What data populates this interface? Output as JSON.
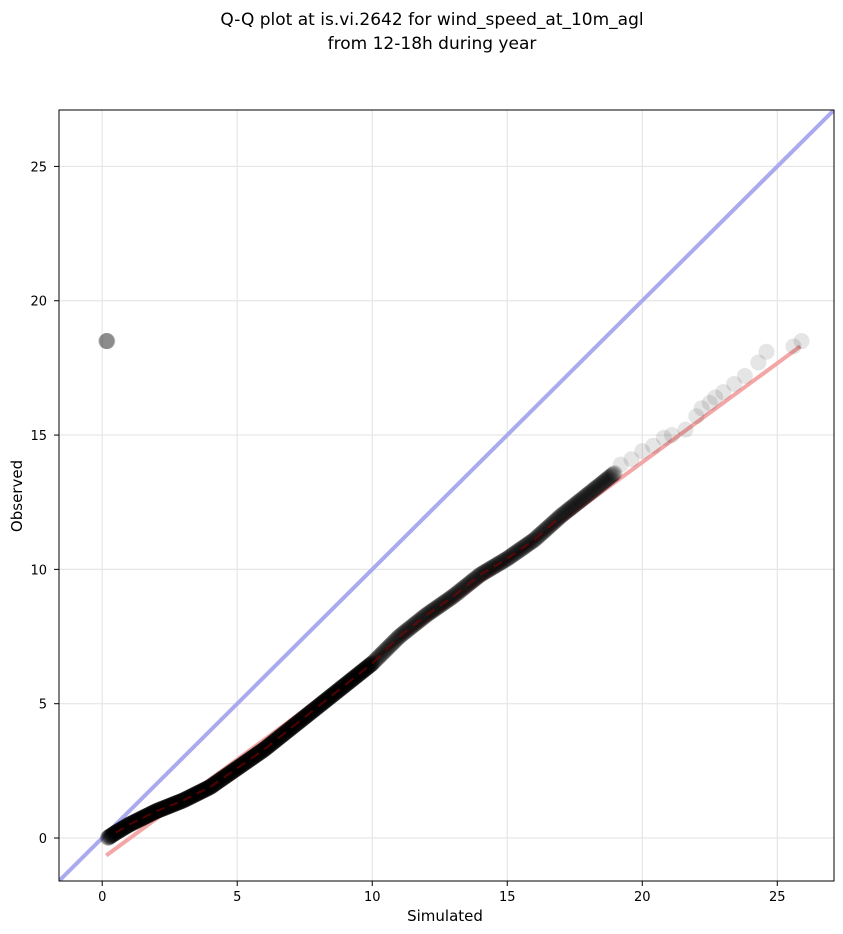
{
  "chart_data": {
    "type": "scatter",
    "title_line1": "Q-Q plot at is.vi.2642 for wind_speed_at_10m_agl",
    "title_line2": "from 12-18h during year",
    "xlabel": "Simulated",
    "ylabel": "Observed",
    "xlim": [
      -1.6,
      27.1
    ],
    "ylim": [
      -1.6,
      27.1
    ],
    "xticks": [
      0,
      5,
      10,
      15,
      20,
      25
    ],
    "yticks": [
      0,
      5,
      10,
      15,
      20,
      25
    ],
    "grid": true,
    "identity_line": {
      "from": [
        -1.6,
        -1.6
      ],
      "to": [
        27.1,
        27.1
      ],
      "color": "#aaaaee"
    },
    "fit_line": {
      "from": [
        0.15,
        -0.65
      ],
      "to": [
        25.85,
        18.3
      ],
      "color": "#f4a6a6"
    },
    "point_color": "#000000",
    "curve_knots": [
      [
        0.2,
        0.0
      ],
      [
        0.5,
        0.2
      ],
      [
        1.0,
        0.5
      ],
      [
        2.0,
        1.0
      ],
      [
        3.0,
        1.4
      ],
      [
        4.0,
        1.9
      ],
      [
        5.0,
        2.6
      ],
      [
        6.0,
        3.3
      ],
      [
        7.0,
        4.1
      ],
      [
        8.0,
        4.9
      ],
      [
        9.0,
        5.7
      ],
      [
        10.0,
        6.5
      ],
      [
        11.0,
        7.5
      ],
      [
        12.0,
        8.3
      ],
      [
        13.0,
        9.0
      ],
      [
        14.0,
        9.8
      ],
      [
        15.0,
        10.4
      ],
      [
        16.0,
        11.1
      ],
      [
        17.0,
        12.0
      ],
      [
        18.0,
        12.8
      ],
      [
        19.0,
        13.6
      ],
      [
        20.0,
        14.4
      ],
      [
        21.0,
        15.0
      ],
      [
        22.0,
        15.7
      ],
      [
        23.0,
        16.6
      ],
      [
        24.0,
        17.3
      ],
      [
        25.0,
        17.9
      ],
      [
        25.9,
        18.5
      ]
    ],
    "tail_points": [
      [
        19.2,
        13.9
      ],
      [
        19.6,
        14.1
      ],
      [
        20.0,
        14.4
      ],
      [
        20.4,
        14.6
      ],
      [
        20.8,
        14.9
      ],
      [
        21.1,
        15.0
      ],
      [
        21.6,
        15.2
      ],
      [
        22.0,
        15.7
      ],
      [
        22.2,
        16.0
      ],
      [
        22.5,
        16.2
      ],
      [
        22.7,
        16.4
      ],
      [
        23.0,
        16.6
      ],
      [
        23.4,
        16.9
      ],
      [
        23.8,
        17.2
      ],
      [
        24.3,
        17.7
      ],
      [
        24.6,
        18.1
      ],
      [
        25.6,
        18.3
      ],
      [
        25.9,
        18.5
      ]
    ]
  }
}
